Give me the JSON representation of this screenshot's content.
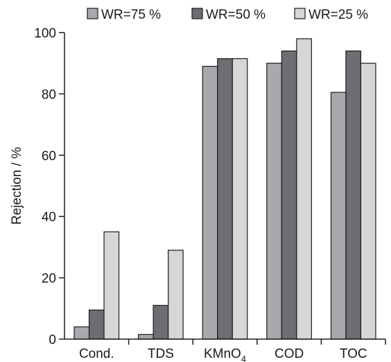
{
  "chart_data": {
    "type": "bar",
    "title": "",
    "xlabel": "",
    "ylabel": "Rejection / %",
    "ylim": [
      0,
      100
    ],
    "yticks": [
      0,
      20,
      40,
      60,
      80,
      100
    ],
    "grid": false,
    "legend_position": "top",
    "categories": [
      {
        "base": "Cond.",
        "sub": ""
      },
      {
        "base": "TDS",
        "sub": ""
      },
      {
        "base": "KMnO",
        "sub": "4"
      },
      {
        "base": "COD",
        "sub": ""
      },
      {
        "base": "TOC",
        "sub": ""
      }
    ],
    "series": [
      {
        "name": "WR=75 %",
        "color": "#a9a9ad",
        "values": [
          4,
          1.5,
          89,
          90,
          80.5
        ]
      },
      {
        "name": "WR=50 %",
        "color": "#6e6e72",
        "values": [
          9.5,
          11,
          91.5,
          94,
          94
        ]
      },
      {
        "name": "WR=25 %",
        "color": "#d6d6d8",
        "values": [
          35,
          29,
          91.5,
          98,
          90
        ]
      }
    ]
  }
}
